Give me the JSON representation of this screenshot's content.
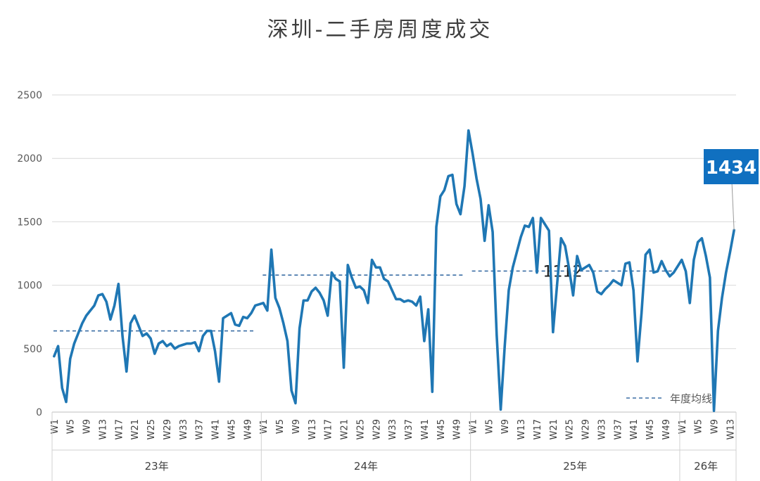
{
  "chart_data": {
    "type": "line",
    "title": "深圳-二手房周度成交",
    "xlabel": "",
    "ylabel": "",
    "ylim": [
      0,
      2500
    ],
    "yticks": [
      0,
      500,
      1000,
      1500,
      2000,
      2500
    ],
    "grid": true,
    "legend": {
      "position": "bottom-right",
      "label": "年度均线"
    },
    "colors": {
      "line": "#1f77b4",
      "avg": "#3b6ea5",
      "callout_bg": "#1070c0",
      "grid": "#d9d9d9",
      "text": "#595959"
    },
    "year_groups": [
      {
        "label": "23年",
        "weeks": 52
      },
      {
        "label": "24年",
        "weeks": 52
      },
      {
        "label": "25年",
        "weeks": 52
      },
      {
        "label": "26年",
        "weeks": 13
      }
    ],
    "tick_labels": [
      "W1",
      "W5",
      "W9",
      "W13",
      "W17",
      "W21",
      "W25",
      "W29",
      "W33",
      "W37",
      "W41",
      "W45",
      "W49"
    ],
    "series": [
      {
        "values": [
          440,
          520,
          190,
          80,
          420,
          540,
          620,
          700,
          760,
          800,
          840,
          920,
          930,
          870,
          730,
          840,
          1010,
          600,
          320,
          700,
          760,
          680,
          600,
          620,
          580,
          460,
          540,
          560,
          520,
          540,
          500,
          520,
          530,
          540,
          540,
          550,
          480,
          600,
          640,
          640,
          480,
          240,
          740,
          760,
          780,
          690,
          680,
          750,
          740,
          780,
          840,
          850,
          860,
          800,
          1280,
          900,
          820,
          700,
          560,
          170,
          70,
          660,
          880,
          880,
          950,
          980,
          940,
          880,
          760,
          1100,
          1050,
          1030,
          350,
          1160,
          1060,
          980,
          990,
          960,
          860,
          1200,
          1140,
          1140,
          1050,
          1030,
          960,
          890,
          890,
          870,
          880,
          870,
          840,
          910,
          560,
          810,
          160,
          1460,
          1700,
          1750,
          1860,
          1870,
          1640,
          1560,
          1780,
          2220,
          2040,
          1840,
          1680,
          1350,
          1630,
          1420,
          610,
          20,
          520,
          960,
          1140,
          1260,
          1380,
          1470,
          1460,
          1530,
          1100,
          1530,
          1480,
          1430,
          630,
          1000,
          1370,
          1310,
          1130,
          920,
          1230,
          1120,
          1140,
          1160,
          1100,
          950,
          930,
          970,
          1000,
          1040,
          1020,
          1000,
          1170,
          1180,
          960,
          400,
          780,
          1240,
          1280,
          1100,
          1110,
          1190,
          1120,
          1070,
          1100,
          1150,
          1200,
          1110,
          860,
          1200,
          1340,
          1370,
          1230,
          1060,
          10,
          640,
          900,
          1100,
          1260,
          1434
        ]
      }
    ],
    "averages": [
      {
        "year": "23年",
        "value": 640
      },
      {
        "year": "24年",
        "value": 1080
      },
      {
        "year": "25年",
        "value": 1112,
        "label": "1112"
      }
    ],
    "callout": {
      "label": "1434",
      "value": 1434
    }
  }
}
